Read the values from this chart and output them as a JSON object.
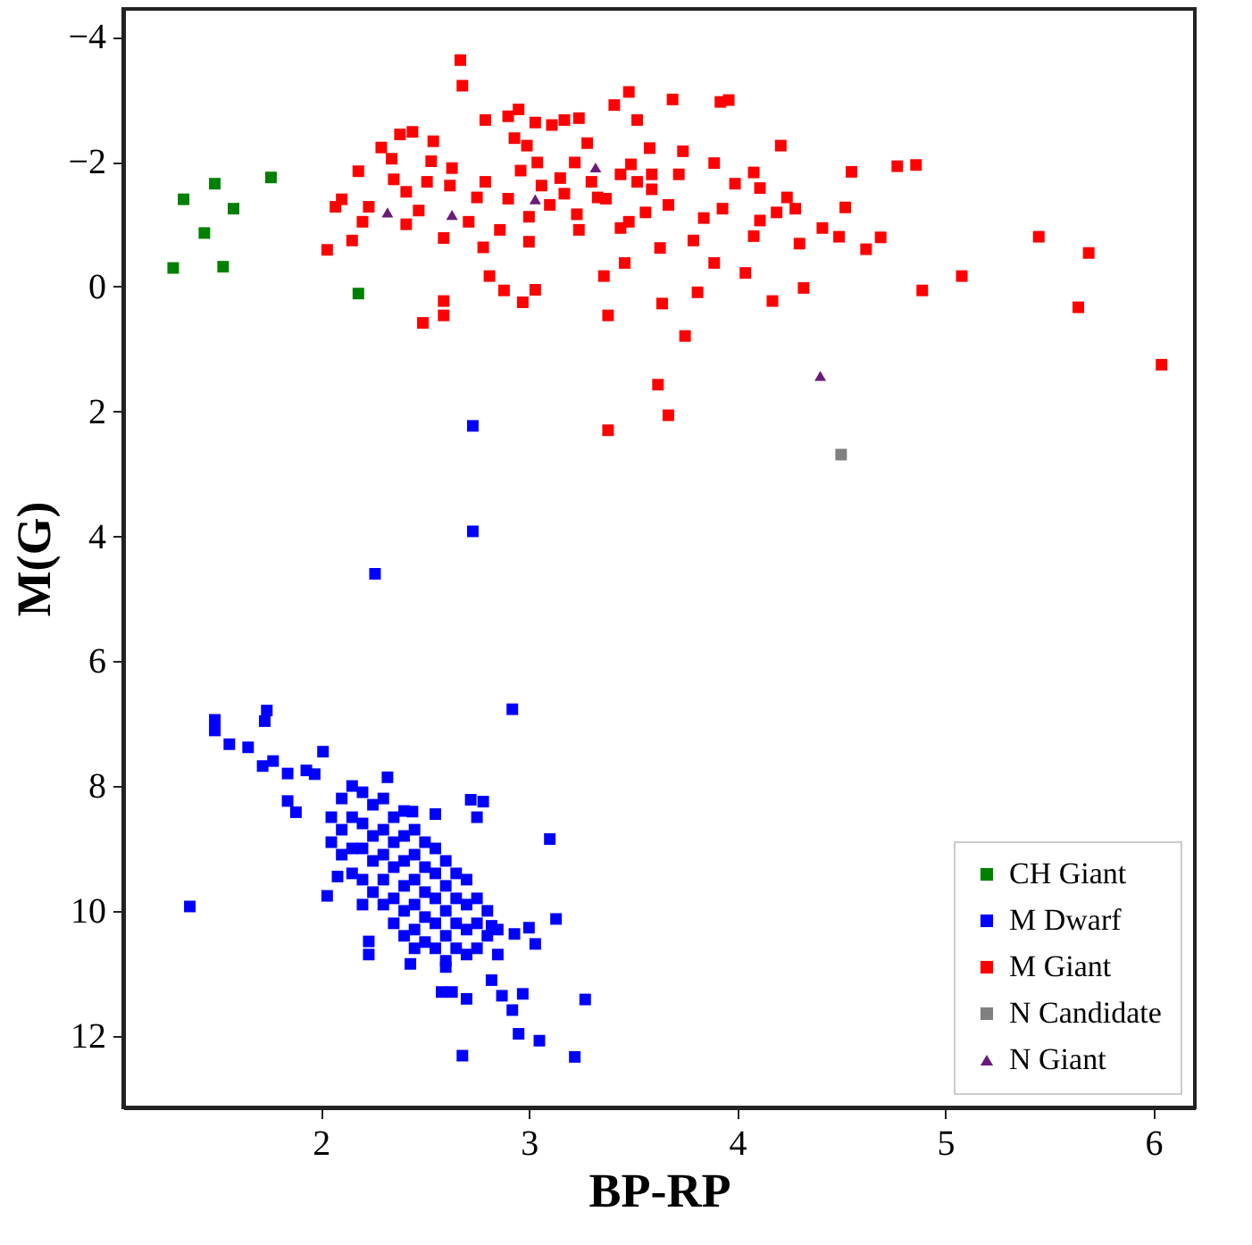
{
  "chart_data": {
    "type": "scatter",
    "xlabel": "BP-RP",
    "ylabel": "M(G)",
    "xlim": [
      1.05,
      6.2
    ],
    "xticks": [
      2,
      3,
      4,
      5,
      6
    ],
    "ylim": [
      13.15,
      -4.45
    ],
    "yticks": [
      {
        "value": -4,
        "label": "−4"
      },
      {
        "value": -2,
        "label": "−2"
      },
      0,
      2,
      4,
      6,
      8,
      10,
      12
    ],
    "grid": false,
    "legend": "bottom right",
    "series": [
      {
        "name": "CH Giant",
        "color": "#008000",
        "marker": "square",
        "x": [
          1.29,
          1.34,
          1.44,
          1.49,
          1.53,
          1.58,
          1.76,
          2.18
        ],
        "values": [
          -0.3,
          -1.4,
          -0.86,
          -1.65,
          -0.32,
          -1.25,
          -1.75,
          0.11
        ]
      },
      {
        "name": "M Dwarf",
        "color": "#0000ff",
        "marker": "square",
        "x": [
          2.73,
          2.73,
          2.26,
          2.92,
          1.49,
          1.74,
          1.49,
          1.56,
          1.65,
          1.73,
          1.72,
          1.77,
          2.01,
          1.84,
          1.93,
          1.84,
          1.88,
          1.97,
          1.37,
          2.72,
          2.78,
          2.82,
          2.75,
          3.1,
          3.13,
          3.27,
          3.22,
          3.05,
          2.95,
          2.68,
          2.92,
          2.97,
          2.87,
          3.03,
          3.0,
          2.93,
          2.03,
          2.08,
          2.23,
          2.23,
          2.43,
          2.58,
          2.63,
          2.7,
          2.82,
          2.32,
          2.44,
          2.55,
          2.05,
          2.05,
          2.1,
          2.1,
          2.1,
          2.15,
          2.15,
          2.15,
          2.15,
          2.2,
          2.2,
          2.2,
          2.2,
          2.2,
          2.25,
          2.25,
          2.25,
          2.25,
          2.3,
          2.3,
          2.3,
          2.3,
          2.3,
          2.35,
          2.35,
          2.35,
          2.35,
          2.35,
          2.4,
          2.4,
          2.4,
          2.4,
          2.4,
          2.4,
          2.45,
          2.45,
          2.45,
          2.45,
          2.45,
          2.5,
          2.5,
          2.5,
          2.5,
          2.5,
          2.55,
          2.55,
          2.55,
          2.55,
          2.55,
          2.6,
          2.6,
          2.6,
          2.6,
          2.6,
          2.65,
          2.65,
          2.65,
          2.65,
          2.7,
          2.7,
          2.7,
          2.7,
          2.75,
          2.75,
          2.75,
          2.8,
          2.8,
          2.85,
          2.85,
          2.6,
          2.45
        ],
        "values": [
          2.23,
          3.92,
          4.6,
          6.77,
          6.94,
          6.79,
          7.11,
          7.33,
          7.38,
          6.96,
          7.68,
          7.6,
          7.45,
          7.8,
          7.75,
          8.24,
          8.42,
          7.81,
          9.93,
          8.22,
          8.25,
          10.24,
          8.5,
          8.85,
          10.13,
          11.42,
          12.34,
          12.08,
          11.97,
          12.32,
          11.59,
          11.33,
          11.36,
          10.53,
          10.27,
          10.37,
          9.76,
          9.45,
          10.49,
          10.7,
          10.85,
          11.3,
          11.3,
          11.41,
          11.11,
          7.86,
          8.41,
          8.45,
          8.5,
          8.9,
          8.2,
          8.7,
          9.1,
          8.0,
          8.5,
          9.0,
          9.4,
          8.1,
          8.6,
          9.0,
          9.5,
          9.9,
          8.3,
          8.8,
          9.2,
          9.7,
          8.2,
          8.7,
          9.1,
          9.5,
          9.9,
          8.5,
          8.9,
          9.3,
          9.8,
          10.2,
          8.4,
          8.8,
          9.2,
          9.6,
          10.0,
          10.4,
          8.7,
          9.1,
          9.5,
          9.9,
          10.3,
          8.9,
          9.3,
          9.7,
          10.1,
          10.5,
          9.0,
          9.4,
          9.8,
          10.2,
          10.6,
          9.2,
          9.6,
          10.0,
          10.4,
          10.8,
          9.4,
          9.8,
          10.2,
          10.6,
          9.5,
          9.9,
          10.3,
          10.7,
          9.8,
          10.2,
          10.6,
          10.0,
          10.4,
          10.3,
          10.7,
          10.9,
          10.6
        ]
      },
      {
        "name": "M Giant",
        "color": "#ff0000",
        "marker": "square",
        "x": [
          2.67,
          2.68,
          2.79,
          2.9,
          2.95,
          2.93,
          3.03,
          3.11,
          3.17,
          3.24,
          3.41,
          3.48,
          3.52,
          3.69,
          3.92,
          3.96,
          4.21,
          4.55,
          4.77,
          4.86,
          5.45,
          5.69,
          5.64,
          6.04,
          5.08,
          4.89,
          4.52,
          4.62,
          4.69,
          4.49,
          4.41,
          4.32,
          4.3,
          4.28,
          4.24,
          4.17,
          4.11,
          4.08,
          4.08,
          4.04,
          3.99,
          3.93,
          3.89,
          3.84,
          3.81,
          3.75,
          3.67,
          3.62,
          3.64,
          3.63,
          3.38,
          3.38,
          3.36,
          3.46,
          3.89,
          3.79,
          3.72,
          3.74,
          3.58,
          3.56,
          3.49,
          3.44,
          3.28,
          3.33,
          3.24,
          3.17,
          3.15,
          3.1,
          3.04,
          3.06,
          3.0,
          3.03,
          2.97,
          2.88,
          2.81,
          2.78,
          2.86,
          2.9,
          2.96,
          2.99,
          2.79,
          2.71,
          2.59,
          2.59,
          2.59,
          2.49,
          2.62,
          2.54,
          2.53,
          2.44,
          2.38,
          2.34,
          2.29,
          2.35,
          2.41,
          2.47,
          2.41,
          2.23,
          2.2,
          2.18,
          2.1,
          2.07,
          2.15,
          2.03,
          2.51,
          2.63,
          3.0,
          3.23,
          3.37,
          3.48,
          3.59,
          3.67,
          3.22,
          3.52,
          2.75,
          3.44,
          3.3,
          3.59,
          4.11,
          4.19
        ],
        "values": [
          -3.63,
          -3.22,
          -2.67,
          -2.73,
          -2.84,
          -2.38,
          -2.63,
          -2.59,
          -2.67,
          -2.7,
          -2.91,
          -3.12,
          -2.67,
          -3.0,
          -2.96,
          -2.99,
          -2.26,
          -1.84,
          -1.93,
          -1.95,
          -0.8,
          -0.54,
          0.33,
          1.25,
          -0.17,
          0.06,
          -1.27,
          -0.6,
          -0.79,
          -0.8,
          -0.94,
          0.02,
          -0.69,
          -1.25,
          -1.43,
          0.23,
          -1.58,
          -1.83,
          -0.81,
          -0.22,
          -1.65,
          -1.25,
          -1.98,
          -1.1,
          0.09,
          0.79,
          2.06,
          1.57,
          0.27,
          -0.62,
          0.46,
          2.3,
          -0.17,
          -0.38,
          -0.38,
          -0.74,
          -1.8,
          -2.17,
          -2.22,
          -1.19,
          -1.96,
          -1.8,
          -2.3,
          -1.43,
          -0.91,
          -1.49,
          -1.74,
          -1.31,
          -1.99,
          -1.62,
          -0.72,
          0.05,
          0.25,
          0.06,
          -0.17,
          -0.63,
          -0.91,
          -1.41,
          -1.86,
          -2.26,
          -1.68,
          -1.04,
          -0.78,
          0.23,
          0.46,
          0.58,
          -1.62,
          -2.33,
          -2.01,
          -2.48,
          -2.44,
          -2.05,
          -2.23,
          -1.72,
          -1.52,
          -1.22,
          -1.0,
          -1.28,
          -1.04,
          -1.85,
          -1.4,
          -1.28,
          -0.74,
          -0.59,
          -1.68,
          -1.9,
          -1.12,
          -1.16,
          -1.41,
          -1.04,
          -1.56,
          -1.31,
          -1.99,
          -1.68,
          -1.43,
          -0.94,
          -1.68,
          -1.8,
          -1.06,
          -1.19
        ]
      },
      {
        "name": "N Candidate",
        "color": "#808080",
        "marker": "square",
        "x": [
          4.5
        ],
        "values": [
          2.69
        ]
      },
      {
        "name": "N Giant",
        "color": "#6a1b78",
        "marker": "triangle",
        "x": [
          2.32,
          2.63,
          3.03,
          3.32,
          4.4
        ],
        "values": [
          -1.19,
          -1.15,
          -1.4,
          -1.91,
          1.43
        ]
      }
    ]
  }
}
